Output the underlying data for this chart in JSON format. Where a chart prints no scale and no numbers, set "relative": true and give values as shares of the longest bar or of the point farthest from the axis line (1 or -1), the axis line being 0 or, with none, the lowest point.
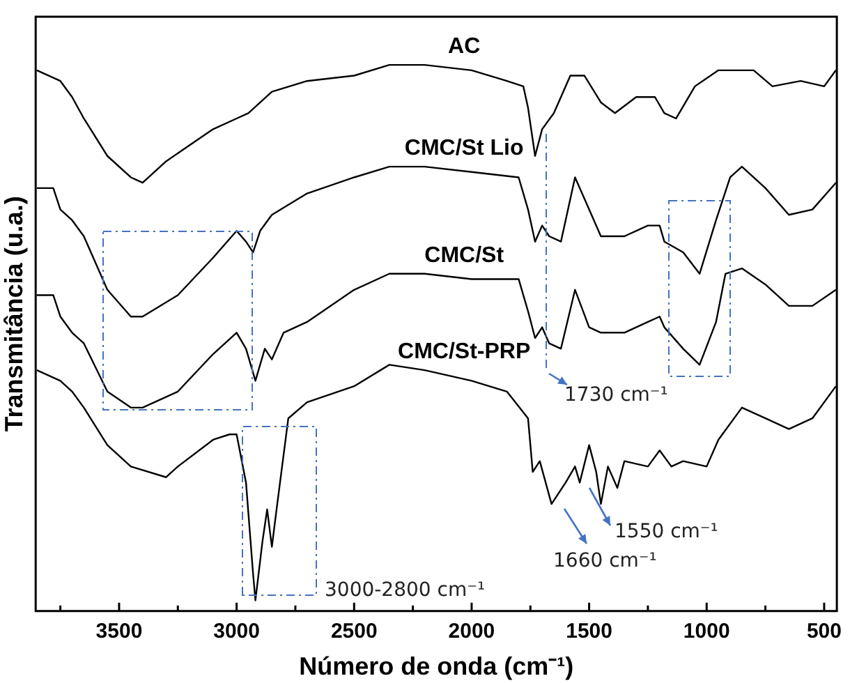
{
  "chart_data": {
    "type": "line",
    "relative": true,
    "xlabel": "Número de onda (cm⁻¹)",
    "ylabel": "Transmitância (u.a.)",
    "xlim": [
      3855,
      446
    ],
    "xticks": [
      {
        "value": 3750,
        "label": null
      },
      3500,
      {
        "value": 3250,
        "label": null
      },
      3000,
      {
        "value": 2750,
        "label": null
      },
      2500,
      {
        "value": 2250,
        "label": null
      },
      2000,
      {
        "value": 1750,
        "label": null
      },
      1500,
      {
        "value": 1250,
        "label": null
      },
      1000,
      {
        "value": 750,
        "label": null
      },
      500
    ],
    "legend": false,
    "marker": "none",
    "annotations": [
      "1730 cm⁻¹",
      "1550 cm⁻¹",
      "1660 cm⁻¹",
      "3000-2800 cm⁻¹"
    ],
    "series": [
      {
        "name": "AC",
        "color": "#000000",
        "x": [
          3850,
          3750,
          3700,
          3650,
          3550,
          3450,
          3400,
          3300,
          3100,
          3000,
          2950,
          2850,
          2700,
          2500,
          2350,
          2200,
          2000,
          1850,
          1780,
          1760,
          1730,
          1700,
          1650,
          1580,
          1520,
          1450,
          1390,
          1300,
          1220,
          1180,
          1130,
          1050,
          950,
          800,
          720,
          600,
          500,
          450
        ],
        "values": [
          0.99,
          0.97,
          0.94,
          0.9,
          0.83,
          0.79,
          0.78,
          0.82,
          0.88,
          0.9,
          0.91,
          0.95,
          0.97,
          0.98,
          1.0,
          1.0,
          0.99,
          0.97,
          0.96,
          0.92,
          0.83,
          0.88,
          0.91,
          0.98,
          0.98,
          0.93,
          0.91,
          0.94,
          0.94,
          0.91,
          0.9,
          0.96,
          0.99,
          0.99,
          0.96,
          0.97,
          0.96,
          0.99
        ]
      },
      {
        "name": "CMC/St Lio",
        "color": "#000000",
        "x": [
          3850,
          3780,
          3750,
          3700,
          3650,
          3550,
          3450,
          3400,
          3250,
          3100,
          3000,
          2960,
          2930,
          2900,
          2850,
          2700,
          2500,
          2350,
          2200,
          2000,
          1800,
          1760,
          1730,
          1700,
          1670,
          1620,
          1560,
          1500,
          1450,
          1350,
          1250,
          1200,
          1180,
          1100,
          1030,
          960,
          900,
          850,
          750,
          650,
          550,
          450
        ],
        "values": [
          0.77,
          0.77,
          0.73,
          0.71,
          0.68,
          0.58,
          0.53,
          0.53,
          0.57,
          0.64,
          0.69,
          0.67,
          0.65,
          0.69,
          0.72,
          0.76,
          0.79,
          0.81,
          0.81,
          0.8,
          0.79,
          0.73,
          0.67,
          0.7,
          0.68,
          0.67,
          0.79,
          0.73,
          0.68,
          0.68,
          0.7,
          0.7,
          0.67,
          0.65,
          0.61,
          0.71,
          0.79,
          0.81,
          0.77,
          0.72,
          0.73,
          0.78
        ]
      },
      {
        "name": "CMC/St",
        "color": "#000000",
        "x": [
          3850,
          3780,
          3750,
          3700,
          3650,
          3550,
          3450,
          3400,
          3250,
          3100,
          3000,
          2960,
          2920,
          2880,
          2850,
          2800,
          2700,
          2500,
          2350,
          2200,
          2000,
          1800,
          1760,
          1730,
          1700,
          1670,
          1620,
          1560,
          1500,
          1450,
          1350,
          1250,
          1200,
          1180,
          1100,
          1030,
          960,
          920,
          850,
          750,
          650,
          550,
          450
        ],
        "values": [
          0.57,
          0.57,
          0.53,
          0.5,
          0.48,
          0.39,
          0.36,
          0.36,
          0.39,
          0.46,
          0.5,
          0.47,
          0.41,
          0.47,
          0.45,
          0.5,
          0.52,
          0.58,
          0.61,
          0.61,
          0.6,
          0.6,
          0.54,
          0.49,
          0.51,
          0.48,
          0.47,
          0.58,
          0.51,
          0.5,
          0.5,
          0.52,
          0.53,
          0.51,
          0.47,
          0.44,
          0.52,
          0.61,
          0.62,
          0.59,
          0.55,
          0.55,
          0.58
        ]
      },
      {
        "name": "CMC/St-PRP",
        "color": "#000000",
        "x": [
          3850,
          3750,
          3700,
          3650,
          3550,
          3450,
          3300,
          3250,
          3100,
          3030,
          3000,
          2960,
          2930,
          2920,
          2890,
          2870,
          2850,
          2830,
          2780,
          2700,
          2500,
          2350,
          2200,
          2000,
          1850,
          1760,
          1740,
          1710,
          1660,
          1600,
          1560,
          1540,
          1500,
          1470,
          1450,
          1420,
          1380,
          1350,
          1250,
          1200,
          1150,
          1100,
          1000,
          950,
          850,
          750,
          650,
          550,
          450
        ],
        "values": [
          0.43,
          0.41,
          0.39,
          0.36,
          0.29,
          0.25,
          0.23,
          0.25,
          0.3,
          0.31,
          0.31,
          0.22,
          0.05,
          0,
          0.11,
          0.17,
          0.1,
          0.17,
          0.34,
          0.37,
          0.4,
          0.44,
          0.43,
          0.41,
          0.39,
          0.34,
          0.24,
          0.26,
          0.18,
          0.22,
          0.25,
          0.22,
          0.29,
          0.24,
          0.18,
          0.25,
          0.21,
          0.26,
          0.25,
          0.28,
          0.25,
          0.26,
          0.25,
          0.3,
          0.36,
          0.34,
          0.32,
          0.34,
          0.4
        ]
      }
    ]
  }
}
